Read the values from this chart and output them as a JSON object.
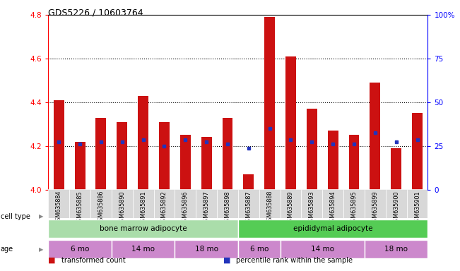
{
  "title": "GDS5226 / 10603764",
  "samples": [
    "GSM635884",
    "GSM635885",
    "GSM635886",
    "GSM635890",
    "GSM635891",
    "GSM635892",
    "GSM635896",
    "GSM635897",
    "GSM635898",
    "GSM635887",
    "GSM635888",
    "GSM635889",
    "GSM635893",
    "GSM635894",
    "GSM635895",
    "GSM635899",
    "GSM635900",
    "GSM635901"
  ],
  "bar_values": [
    4.41,
    4.22,
    4.33,
    4.31,
    4.43,
    4.31,
    4.25,
    4.24,
    4.33,
    4.07,
    4.79,
    4.61,
    4.37,
    4.27,
    4.25,
    4.49,
    4.19,
    4.35
  ],
  "blue_dots": [
    4.22,
    4.21,
    4.22,
    4.22,
    4.23,
    4.2,
    4.23,
    4.22,
    4.21,
    4.19,
    4.28,
    4.23,
    4.22,
    4.21,
    4.21,
    4.26,
    4.22,
    4.23
  ],
  "bar_color": "#cc1111",
  "dot_color": "#2233bb",
  "ylim": [
    4.0,
    4.8
  ],
  "y_ticks_left": [
    4.0,
    4.2,
    4.4,
    4.6,
    4.8
  ],
  "y_ticks_right": [
    0,
    25,
    50,
    75,
    100
  ],
  "y_ticks_right_labels": [
    "0",
    "25",
    "50",
    "75",
    "100%"
  ],
  "dotted_lines": [
    4.2,
    4.4,
    4.6
  ],
  "cell_type_groups": [
    {
      "label": "bone marrow adipocyte",
      "start": 0,
      "end": 9,
      "color": "#aaddaa"
    },
    {
      "label": "epididymal adipocyte",
      "start": 9,
      "end": 18,
      "color": "#55cc55"
    }
  ],
  "age_groups": [
    {
      "label": "6 mo",
      "start": 0,
      "end": 3
    },
    {
      "label": "14 mo",
      "start": 3,
      "end": 6
    },
    {
      "label": "18 mo",
      "start": 6,
      "end": 9
    },
    {
      "label": "6 mo",
      "start": 9,
      "end": 11
    },
    {
      "label": "14 mo",
      "start": 11,
      "end": 15
    },
    {
      "label": "18 mo",
      "start": 15,
      "end": 18
    }
  ],
  "age_color": "#cc88cc",
  "cell_type_label": "cell type",
  "age_label": "age",
  "legend_items": [
    {
      "color": "#cc1111",
      "label": "transformed count"
    },
    {
      "color": "#2233bb",
      "label": "percentile rank within the sample"
    }
  ],
  "bar_width": 0.5
}
